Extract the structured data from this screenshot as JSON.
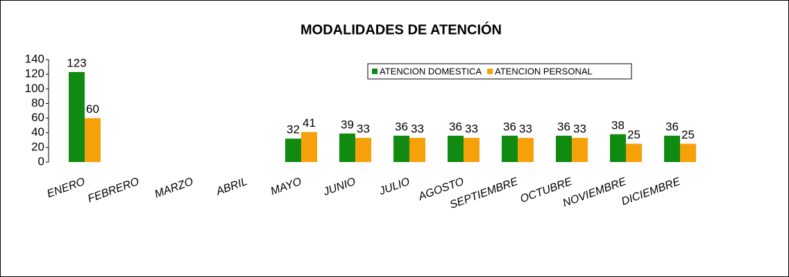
{
  "chart_data": {
    "type": "bar",
    "title": "MODALIDADES DE ATENCIÓN",
    "categories": [
      "ENERO",
      "FEBRERO",
      "MARZO",
      "ABRIL",
      "MAYO",
      "JUNIO",
      "JULIO",
      "AGOSTO",
      "SEPTIEMBRE",
      "OCTUBRE",
      "NOVIEMBRE",
      "DICIEMBRE"
    ],
    "series": [
      {
        "name": "ATENCION DOMESTICA",
        "color": "#118a11",
        "values": [
          123,
          null,
          null,
          null,
          32,
          39,
          36,
          36,
          36,
          36,
          38,
          36
        ]
      },
      {
        "name": "ATENCION PERSONAL",
        "color": "#f7a10a",
        "values": [
          60,
          null,
          null,
          null,
          41,
          33,
          33,
          33,
          33,
          33,
          25,
          25
        ]
      }
    ],
    "ylim": [
      0,
      140
    ],
    "yticks": [
      0,
      20,
      40,
      60,
      80,
      100,
      120,
      140
    ],
    "grid": false,
    "legend": "top-right"
  }
}
